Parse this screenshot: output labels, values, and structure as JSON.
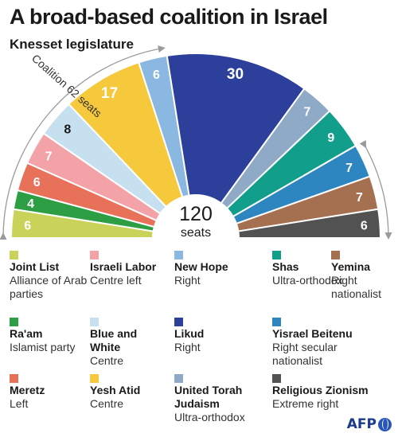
{
  "title": "A broad-based coalition in Israel",
  "subtitle": "Knesset legislature",
  "coalition_label": "Coalition 62 seats",
  "center_value": "120",
  "center_label": "seats",
  "logo_text": "AFP",
  "chart_data": {
    "type": "pie",
    "style": "semicircle-parliament",
    "total_seats": 120,
    "parties": [
      {
        "name": "Joint List",
        "seats": 6,
        "color": "#c9d35a",
        "desc": "Alliance of Arab parties",
        "label_color": "#ffffff"
      },
      {
        "name": "Ra'am",
        "seats": 4,
        "color": "#2e9e45",
        "desc": "Islamist party",
        "label_color": "#ffffff"
      },
      {
        "name": "Meretz",
        "seats": 6,
        "color": "#e8715a",
        "desc": "Left",
        "label_color": "#ffffff"
      },
      {
        "name": "Israeli Labor",
        "seats": 7,
        "color": "#f3a3a8",
        "desc": "Centre left",
        "label_color": "#ffffff"
      },
      {
        "name": "Blue and White",
        "seats": 8,
        "color": "#c7e0f0",
        "desc": "Centre",
        "label_color": "#1a1a1a"
      },
      {
        "name": "Yesh Atid",
        "seats": 17,
        "color": "#f6c93c",
        "desc": "Centre",
        "label_color": "#ffffff"
      },
      {
        "name": "New Hope",
        "seats": 6,
        "color": "#8bb8e0",
        "desc": "Right",
        "label_color": "#ffffff"
      },
      {
        "name": "Likud",
        "seats": 30,
        "color": "#2c3f9a",
        "desc": "Right",
        "label_color": "#ffffff"
      },
      {
        "name": "United Torah Judaism",
        "seats": 7,
        "color": "#8eaac6",
        "desc": "Ultra-orthodox",
        "label_color": "#ffffff"
      },
      {
        "name": "Shas",
        "seats": 9,
        "color": "#119e8a",
        "desc": "Ultra-orthodox",
        "label_color": "#ffffff"
      },
      {
        "name": "Yisrael Beitenu",
        "seats": 7,
        "color": "#2e86c1",
        "desc": "Right secular nationalist",
        "label_color": "#ffffff"
      },
      {
        "name": "Yemina",
        "seats": 7,
        "color": "#a5704f",
        "desc": "Right nationalist",
        "label_color": "#ffffff"
      },
      {
        "name": "Religious Zionism",
        "seats": 6,
        "color": "#525252",
        "desc": "Extreme right",
        "label_color": "#ffffff"
      }
    ]
  },
  "legend": [
    {
      "name": "Joint List",
      "desc": "Alliance of Arab parties",
      "color": "#c9d35a"
    },
    {
      "name": "Israeli Labor",
      "desc": "Centre left",
      "color": "#f3a3a8"
    },
    {
      "name": "New Hope",
      "desc": "Right",
      "color": "#8bb8e0"
    },
    {
      "name": "Shas",
      "desc": "Ultra-orthodox",
      "color": "#119e8a"
    },
    {
      "name": "Yemina",
      "desc": "Right nationalist",
      "color": "#a5704f"
    },
    {
      "name": "Ra'am",
      "desc": "Islamist party",
      "color": "#2e9e45"
    },
    {
      "name": "Blue and White",
      "desc": "Centre",
      "color": "#c7e0f0"
    },
    {
      "name": "Likud",
      "desc": "Right",
      "color": "#2c3f9a"
    },
    {
      "name": "Yisrael Beitenu",
      "desc": "Right secular nationalist",
      "color": "#2e86c1"
    },
    {
      "name": "Meretz",
      "desc": "Left",
      "color": "#e8715a"
    },
    {
      "name": "Yesh Atid",
      "desc": "Centre",
      "color": "#f6c93c"
    },
    {
      "name": "United Torah Judaism",
      "desc": "Ultra-orthodox",
      "color": "#8eaac6"
    },
    {
      "name": "Religious Zionism",
      "desc": "Extreme right",
      "color": "#525252"
    }
  ]
}
